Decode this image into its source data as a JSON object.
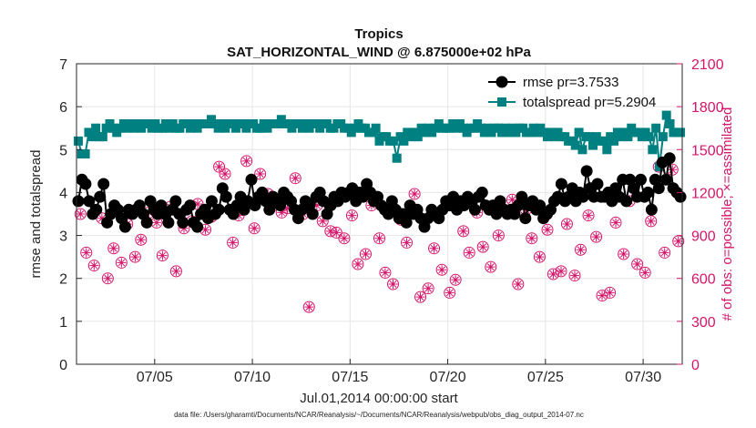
{
  "chart_data": {
    "type": "line",
    "title": "Tropics",
    "subtitle": "SAT_HORIZONTAL_WIND @ 6.875000e+02 hPa",
    "xlabel": "Jul.01,2014 00:00:00 start",
    "ylabel": "rmse and totalspread",
    "ylabel_right": "# of obs: o=possible; ×=assimilated",
    "footnote": "data file: /Users/gharamti/Documents/NCAR/Reanalysis/~/Documents/NCAR/Reanalysis/webpub/obs_diag_output_2014-07.nc",
    "xlim": [
      1,
      32
    ],
    "ylim": [
      0,
      7
    ],
    "ylim_right": [
      0,
      2100
    ],
    "x_ticks": [
      5,
      10,
      15,
      20,
      25,
      30
    ],
    "x_tick_labels": [
      "07/05",
      "07/10",
      "07/15",
      "07/20",
      "07/25",
      "07/30"
    ],
    "y_ticks": [
      0,
      1,
      2,
      3,
      4,
      5,
      6,
      7
    ],
    "y_tick_labels": [
      "0",
      "1",
      "2",
      "3",
      "4",
      "5",
      "6",
      "7"
    ],
    "y_ticks_right": [
      0,
      300,
      600,
      900,
      1200,
      1500,
      1800,
      2100
    ],
    "y_tick_labels_right": [
      "0",
      "300",
      "600",
      "900",
      "1200",
      "1500",
      "1800",
      "2100"
    ],
    "grid": true,
    "legend_position": "top-right",
    "colors": {
      "rmse": "#000000",
      "totalspread": "#008080",
      "obs": "#d6156b",
      "grid": "#e6e6e6",
      "axis": "#262626"
    },
    "series": [
      {
        "name": "rmse",
        "legend_label": "rmse pr=3.7533",
        "marker": "circle",
        "values": [
          3.8,
          4.3,
          4.2,
          3.8,
          3.5,
          3.6,
          3.9,
          4.2,
          3.3,
          3.5,
          3.7,
          3.6,
          3.4,
          3.2,
          3.6,
          3.5,
          3.6,
          3.7,
          3.5,
          3.3,
          3.8,
          3.6,
          3.5,
          3.7,
          3.5,
          3.3,
          3.6,
          3.8,
          3.5,
          3.3,
          3.6,
          3.7,
          3.3,
          3.2,
          3.5,
          3.6,
          3.4,
          3.8,
          3.5,
          3.6,
          4.1,
          3.9,
          3.6,
          3.5,
          3.7,
          3.9,
          3.6,
          3.8,
          4.3,
          3.7,
          3.9,
          4.0,
          3.8,
          3.6,
          3.9,
          3.8,
          3.7,
          4.0,
          3.9,
          3.8,
          3.6,
          3.4,
          3.6,
          3.8,
          3.7,
          3.5,
          3.9,
          4.0,
          3.8,
          3.5,
          3.7,
          3.9,
          3.8,
          4.0,
          3.9,
          4.0,
          4.1,
          3.8,
          4.0,
          3.9,
          4.2,
          4.0,
          3.8,
          3.9,
          3.7,
          3.6,
          3.5,
          3.8,
          3.6,
          3.4,
          3.5,
          3.3,
          3.7,
          3.5,
          3.6,
          3.4,
          3.2,
          3.4,
          3.6,
          3.5,
          3.4,
          3.6,
          3.8,
          3.7,
          3.9,
          3.6,
          3.8,
          3.7,
          3.9,
          3.8,
          3.6,
          3.9,
          4.0,
          3.7,
          3.6,
          3.7,
          3.5,
          3.8,
          3.6,
          3.5,
          3.6,
          3.5,
          3.7,
          3.9,
          3.4,
          3.7,
          3.8,
          3.6,
          3.7,
          3.4,
          3.5,
          3.6,
          3.8,
          3.9,
          4.2,
          3.8,
          3.9,
          4.1,
          3.8,
          4.0,
          3.9,
          4.5,
          4.1,
          3.9,
          4.2,
          3.9,
          3.9,
          4.0,
          3.8,
          4.1,
          3.9,
          4.3,
          3.8,
          4.3,
          4.1,
          3.9,
          4.3,
          3.9,
          4.0,
          3.6,
          4.3,
          4.1,
          4.7,
          4.3,
          4.8,
          4.1,
          4.0,
          3.9
        ]
      },
      {
        "name": "totalspread",
        "legend_label": "totalspread pr=5.2904",
        "marker": "square",
        "values": [
          5.2,
          4.9,
          4.9,
          5.4,
          5.3,
          5.5,
          5.3,
          5.3,
          5.5,
          5.6,
          5.5,
          5.4,
          5.5,
          5.6,
          5.5,
          5.6,
          5.5,
          5.6,
          5.5,
          5.6,
          5.6,
          5.5,
          5.6,
          5.5,
          5.5,
          5.6,
          5.5,
          5.6,
          5.5,
          5.5,
          5.6,
          5.6,
          5.5,
          5.6,
          5.5,
          5.6,
          5.6,
          5.6,
          5.7,
          5.6,
          5.5,
          5.6,
          5.5,
          5.6,
          5.6,
          5.5,
          5.6,
          5.6,
          5.5,
          5.6,
          5.6,
          5.5,
          5.5,
          5.6,
          5.5,
          5.6,
          5.6,
          5.6,
          5.7,
          5.6,
          5.6,
          5.5,
          5.6,
          5.6,
          5.5,
          5.6,
          5.5,
          5.6,
          5.6,
          5.5,
          5.6,
          5.6,
          5.5,
          5.5,
          5.6,
          5.6,
          5.5,
          5.5,
          5.4,
          5.5,
          5.6,
          5.5,
          5.5,
          5.4,
          5.4,
          5.5,
          5.2,
          5.3,
          5.3,
          5.2,
          5.2,
          4.8,
          5.3,
          5.2,
          5.4,
          5.3,
          5.4,
          5.3,
          5.5,
          5.4,
          5.5,
          5.4,
          5.5,
          5.6,
          5.5,
          5.5,
          5.5,
          5.6,
          5.5,
          5.6,
          5.5,
          5.4,
          5.5,
          5.5,
          5.6,
          5.5,
          5.4,
          5.5,
          5.4,
          5.5,
          5.5,
          5.4,
          5.5,
          5.4,
          5.5,
          5.4,
          5.5,
          5.5,
          5.4,
          5.4,
          5.5,
          5.4,
          5.5,
          5.4,
          5.3,
          5.4,
          5.3,
          5.4,
          5.3,
          5.3,
          5.2,
          5.2,
          5.1,
          5.4,
          5.0,
          5.3,
          5.3,
          5.1,
          5.3,
          5.2,
          5.2,
          5.0,
          5.3,
          5.2,
          5.4,
          5.3,
          5.4,
          5.3,
          5.5,
          5.4,
          5.4,
          5.3,
          5.4,
          5.3,
          5.0,
          5.5,
          4.6,
          5.3,
          5.8,
          5.6,
          5.4,
          5.4,
          5.4
        ]
      },
      {
        "name": "obs_possible_and_assimilated",
        "axis": "right",
        "marker": "circle+asterisk",
        "x": [
          1.2,
          1.5,
          1.9,
          2.3,
          2.6,
          2.9,
          3.3,
          3.6,
          4.0,
          4.3,
          4.7,
          5.1,
          5.4,
          5.8,
          6.1,
          6.5,
          6.9,
          7.2,
          7.6,
          7.9,
          8.3,
          8.6,
          9.0,
          9.3,
          9.7,
          10.1,
          10.4,
          10.8,
          11.1,
          11.5,
          11.8,
          12.2,
          12.6,
          12.9,
          13.3,
          13.6,
          14.0,
          14.3,
          14.7,
          15.1,
          15.4,
          15.8,
          16.1,
          16.5,
          16.8,
          17.2,
          17.6,
          17.9,
          18.3,
          18.6,
          19.0,
          19.3,
          19.7,
          20.1,
          20.4,
          20.8,
          21.1,
          21.5,
          21.8,
          22.2,
          22.6,
          22.9,
          23.3,
          23.6,
          24.0,
          24.3,
          24.7,
          25.1,
          25.4,
          25.8,
          26.1,
          26.5,
          26.8,
          27.2,
          27.6,
          27.9,
          28.3,
          28.6,
          29.0,
          29.3,
          29.7,
          30.1,
          30.4,
          30.8,
          31.1,
          31.5,
          31.8
        ],
        "values": [
          1050,
          780,
          690,
          1020,
          600,
          810,
          710,
          980,
          750,
          870,
          1060,
          990,
          760,
          1100,
          650,
          950,
          1000,
          1120,
          940,
          1030,
          1380,
          1330,
          850,
          1040,
          1420,
          950,
          1330,
          1190,
          1110,
          1060,
          1090,
          1300,
          1050,
          400,
          1110,
          1000,
          930,
          920,
          880,
          1040,
          700,
          770,
          1110,
          880,
          640,
          560,
          1010,
          850,
          1190,
          470,
          530,
          810,
          660,
          500,
          590,
          930,
          780,
          1060,
          820,
          680,
          900,
          1080,
          1150,
          560,
          1080,
          880,
          750,
          940,
          630,
          650,
          980,
          620,
          800,
          1040,
          890,
          480,
          500,
          990,
          770,
          1140,
          700,
          640,
          1000,
          1380,
          780,
          1360,
          860
        ]
      }
    ]
  }
}
